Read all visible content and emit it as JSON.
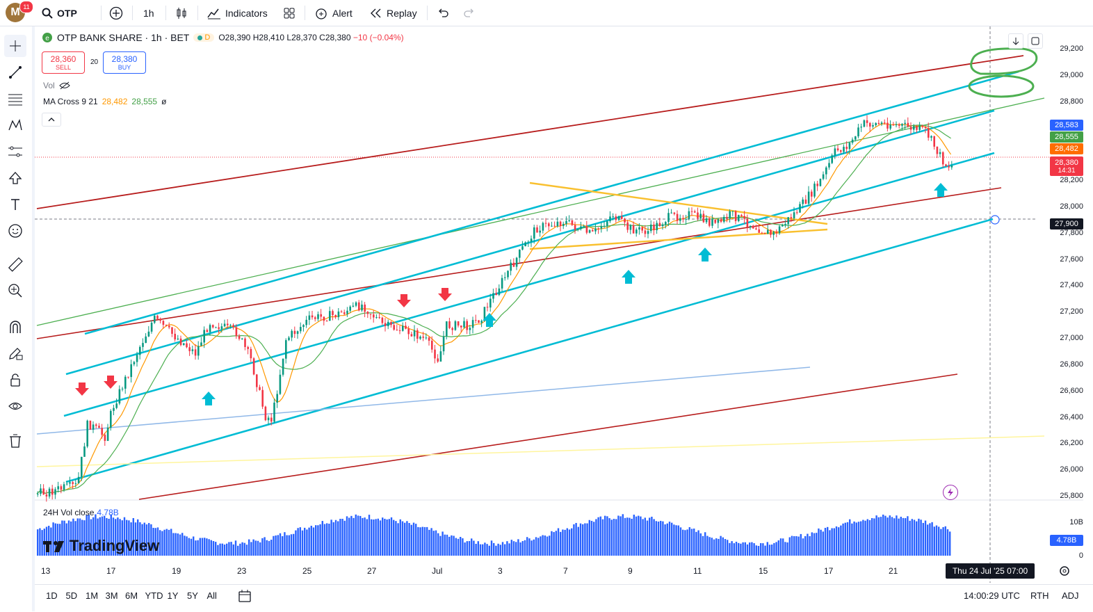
{
  "app": {
    "user_initial": "M",
    "notifications": "11"
  },
  "toolbar": {
    "symbol": "OTP",
    "interval": "1h",
    "indicators_label": "Indicators",
    "alert_label": "Alert",
    "replay_label": "Replay"
  },
  "legend": {
    "title": "OTP BANK SHARE · 1h · BET",
    "badge": "D",
    "open": "O28,390",
    "high": "H28,410",
    "low": "L28,370",
    "close": "C28,380",
    "change": "−10 (−0.04%)"
  },
  "trade": {
    "sell_price": "28,360",
    "sell_label": "SELL",
    "spread": "20",
    "buy_price": "28,380",
    "buy_label": "BUY"
  },
  "indicators": {
    "vol_label": "Vol",
    "ma_label": "MA Cross 9 21",
    "ma_fast": "28,482",
    "ma_slow": "28,555",
    "ma_extra": "ø"
  },
  "volume_pane": {
    "label": "24H Vol close",
    "value": "4.78B"
  },
  "price_axis": {
    "labels": [
      "29,200",
      "29,000",
      "28,800",
      "28,200",
      "28,000",
      "27,800",
      "27,600",
      "27,400",
      "27,200",
      "27,000",
      "26,800",
      "26,600",
      "26,400",
      "26,200",
      "26,000",
      "25,800"
    ],
    "tags": [
      {
        "text": "28,583",
        "color": "#2962ff"
      },
      {
        "text": "28,555",
        "color": "#43a047"
      },
      {
        "text": "28,482",
        "color": "#ff6d00"
      },
      {
        "text": "28,380",
        "color": "#f23645",
        "sub": "14:31"
      },
      {
        "text": "27,900",
        "color": "#131722"
      }
    ]
  },
  "volume_axis": {
    "labels": [
      "10B",
      "0"
    ],
    "tag": "4.78B"
  },
  "time_axis": {
    "labels": [
      "13",
      "17",
      "19",
      "23",
      "25",
      "27",
      "Jul",
      "3",
      "7",
      "9",
      "11",
      "15",
      "17",
      "21"
    ],
    "crosshair_label": "Thu 24 Jul '25   07:00"
  },
  "bottom": {
    "ranges": [
      "1D",
      "5D",
      "1M",
      "3M",
      "6M",
      "YTD",
      "1Y",
      "5Y",
      "All"
    ],
    "clock": "14:00:29 UTC",
    "session": "RTH",
    "adj": "ADJ"
  },
  "watermark": "TradingView",
  "colors": {
    "up": "#089981",
    "down": "#f23645",
    "channel": "#00bcd4",
    "ma_fast": "#ff9800",
    "ma_slow": "#4caf50",
    "red_line": "#b71c1c",
    "triangle": "#f9c02f",
    "volume": "#2962ff",
    "annotation": "#4caf50"
  }
}
